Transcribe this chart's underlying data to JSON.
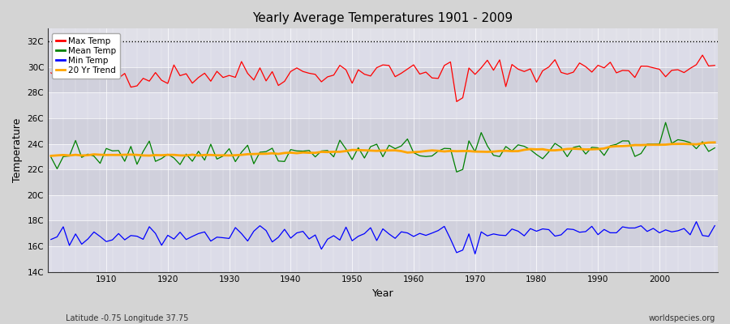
{
  "title": "Yearly Average Temperatures 1901 - 2009",
  "xlabel": "Year",
  "ylabel": "Temperature",
  "subtitle_left": "Latitude -0.75 Longitude 37.75",
  "subtitle_right": "worldspecies.org",
  "year_start": 1901,
  "year_end": 2009,
  "ylim": [
    14,
    33
  ],
  "yticks": [
    14,
    16,
    18,
    20,
    22,
    24,
    26,
    28,
    30,
    32
  ],
  "ytick_labels": [
    "14C",
    "16C",
    "18C",
    "20C",
    "22C",
    "24C",
    "26C",
    "28C",
    "30C",
    "32C"
  ],
  "xticks": [
    1910,
    1920,
    1930,
    1940,
    1950,
    1960,
    1970,
    1980,
    1990,
    2000
  ],
  "bg_color": "#d4d4d4",
  "plot_bg_color": "#e0e0e8",
  "band_color_light": "#dcdce8",
  "band_color_dark": "#d0d0dc",
  "max_temp_color": "#ff0000",
  "mean_temp_color": "#008000",
  "min_temp_color": "#0000ff",
  "trend_color": "#ffa500",
  "dotted_line_y": 32,
  "legend_labels": [
    "Max Temp",
    "Mean Temp",
    "Min Temp",
    "20 Yr Trend"
  ],
  "legend_colors": [
    "#ff0000",
    "#008000",
    "#0000ff",
    "#ffa500"
  ],
  "max_temp_base": 29.3,
  "mean_temp_base": 23.0,
  "min_temp_base": 16.7,
  "max_temp_trend": 0.7,
  "mean_temp_trend": 0.8,
  "min_temp_trend": 0.5
}
